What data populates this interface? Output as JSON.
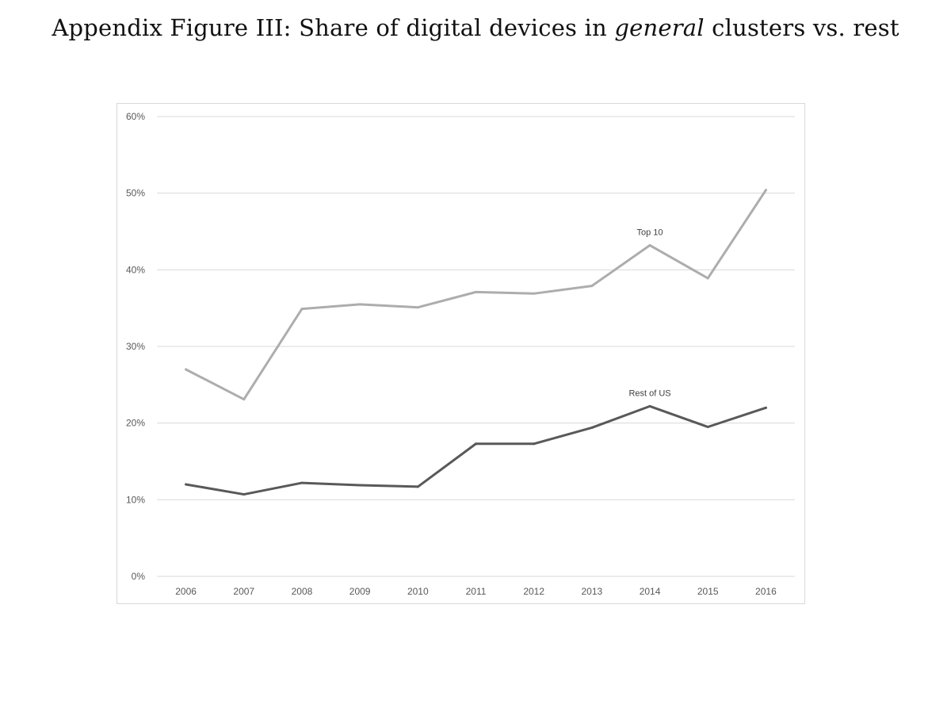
{
  "figure": {
    "title_prefix": "Appendix Figure III: Share of digital devices in ",
    "title_emphasis": "general",
    "title_suffix": " clusters vs. rest"
  },
  "chart_data": {
    "type": "line",
    "title": "",
    "xlabel": "",
    "ylabel": "",
    "x": [
      "2006",
      "2007",
      "2008",
      "2009",
      "2010",
      "2011",
      "2012",
      "2013",
      "2014",
      "2015",
      "2016"
    ],
    "ylim": [
      0,
      0.6
    ],
    "yticks": [
      0,
      0.1,
      0.2,
      0.3,
      0.4,
      0.5,
      0.6
    ],
    "ytick_labels": [
      "0%",
      "10%",
      "20%",
      "30%",
      "40%",
      "50%",
      "60%"
    ],
    "grid": true,
    "legend": "none",
    "series": [
      {
        "name": "Top 10",
        "color": "#adadad",
        "values": [
          0.27,
          0.231,
          0.349,
          0.355,
          0.351,
          0.371,
          0.369,
          0.379,
          0.432,
          0.389,
          0.504
        ],
        "label_at": "2014"
      },
      {
        "name": "Rest of US",
        "color": "#595959",
        "values": [
          0.12,
          0.107,
          0.122,
          0.119,
          0.117,
          0.173,
          0.173,
          0.194,
          0.222,
          0.195,
          0.22
        ],
        "label_at": "2014"
      }
    ]
  }
}
